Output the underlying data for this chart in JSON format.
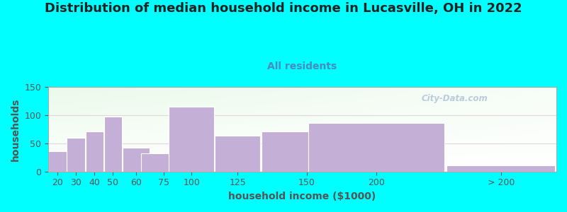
{
  "title": "Distribution of median household income in Lucasville, OH in 2022",
  "subtitle": "All residents",
  "xlabel": "household income ($1000)",
  "ylabel": "households",
  "background_color": "#00FFFF",
  "bar_color": "#c4afd6",
  "bar_edge_color": "#c4afd6",
  "bar_labels": [
    "20",
    "30",
    "40",
    "50",
    "60",
    "75",
    "100",
    "125",
    "150",
    "200",
    "> 200"
  ],
  "bar_heights": [
    36,
    60,
    71,
    98,
    42,
    32,
    115,
    63,
    71,
    86,
    11
  ],
  "bar_widths": [
    10,
    10,
    10,
    10,
    15,
    25,
    25,
    25,
    50,
    75,
    60
  ],
  "bar_lefts": [
    10,
    20,
    30,
    40,
    50,
    60,
    75,
    100,
    125,
    150,
    225
  ],
  "ylim": [
    0,
    150
  ],
  "yticks": [
    0,
    50,
    100,
    150
  ],
  "title_fontsize": 13,
  "subtitle_fontsize": 10,
  "axis_label_fontsize": 10,
  "tick_fontsize": 9,
  "watermark_text": "City-Data.com",
  "title_color": "#222222",
  "subtitle_color": "#4a8abf",
  "axis_label_color": "#555555",
  "tick_color": "#555555",
  "grid_color": "#e0d8d8",
  "xlim_left": 10,
  "xlim_right": 285
}
